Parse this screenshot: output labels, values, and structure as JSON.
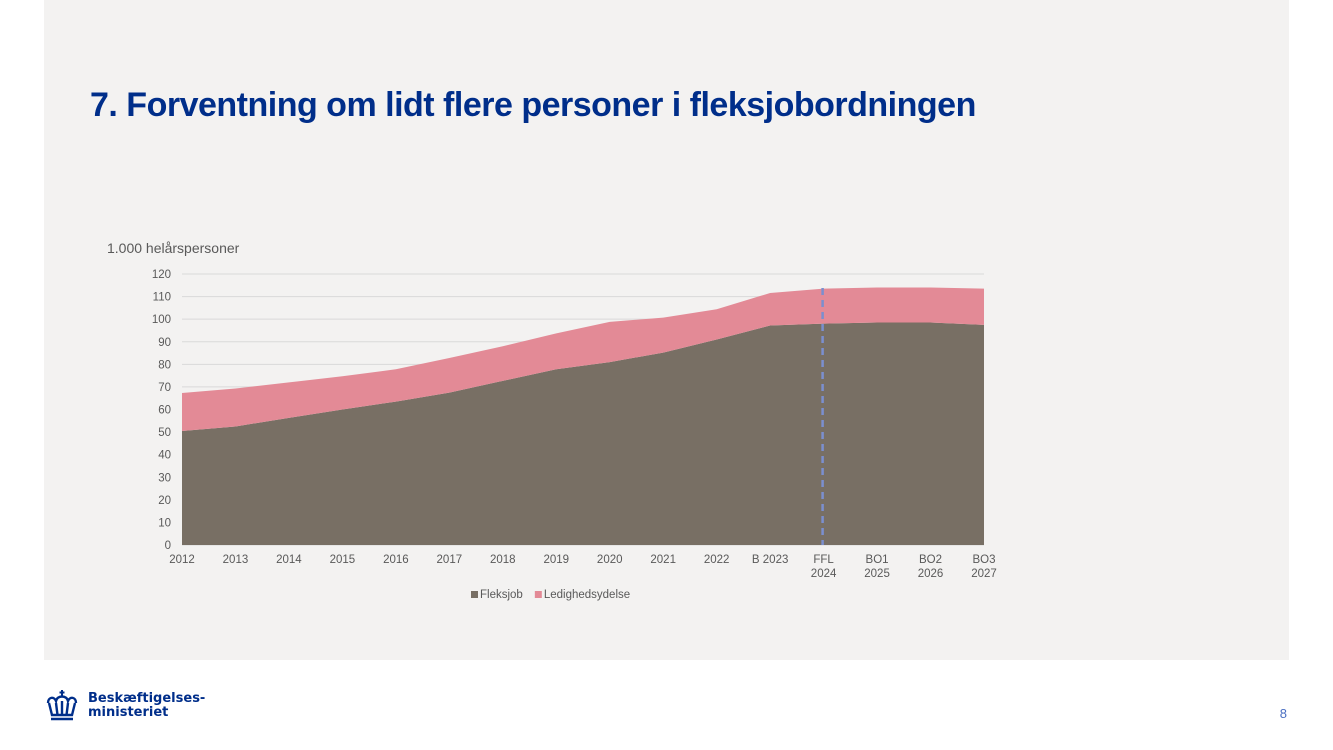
{
  "slide": {
    "title": "7. Forventning om lidt flere personer i fleksjobordningen",
    "page_number": "8"
  },
  "logo": {
    "line1": "Beskæftigelses-",
    "line2": "ministeriet",
    "color": "#002e8a"
  },
  "chart_data": {
    "type": "area",
    "stacked": true,
    "unit_label": "1.000 helårspersoner",
    "categories": [
      "2012",
      "2013",
      "2014",
      "2015",
      "2016",
      "2017",
      "2018",
      "2019",
      "2020",
      "2021",
      "2022",
      "B 2023",
      "FFL 2024",
      "BO1 2025",
      "BO2 2026",
      "BO3 2027"
    ],
    "category_lines": [
      [
        "2012"
      ],
      [
        "2013"
      ],
      [
        "2014"
      ],
      [
        "2015"
      ],
      [
        "2016"
      ],
      [
        "2017"
      ],
      [
        "2018"
      ],
      [
        "2019"
      ],
      [
        "2020"
      ],
      [
        "2021"
      ],
      [
        "2022"
      ],
      [
        "B 2023"
      ],
      [
        "FFL",
        "2024"
      ],
      [
        "BO1",
        "2025"
      ],
      [
        "BO2",
        "2026"
      ],
      [
        "BO3",
        "2027"
      ]
    ],
    "series": [
      {
        "name": "Fleksjob",
        "color": "#786f64",
        "values": [
          50.5,
          52.5,
          56.3,
          60.0,
          63.5,
          67.5,
          72.7,
          77.8,
          81.0,
          85.2,
          91.0,
          97.2,
          98.0,
          98.5,
          98.5,
          97.5
        ]
      },
      {
        "name": "Ledighedsydelse",
        "color": "#e38a96",
        "values": [
          16.8,
          16.8,
          15.7,
          14.7,
          14.3,
          15.3,
          15.3,
          15.9,
          17.8,
          15.5,
          13.4,
          14.4,
          15.5,
          15.5,
          15.5,
          16.0
        ]
      }
    ],
    "ylim": [
      0,
      120
    ],
    "yticks": [
      0,
      10,
      20,
      30,
      40,
      50,
      60,
      70,
      80,
      90,
      100,
      110,
      120
    ],
    "grid": true,
    "vertical_marker": {
      "category": "FFL 2024",
      "style": "dashed",
      "color": "#7b8fcf"
    },
    "legend_position": "bottom"
  }
}
